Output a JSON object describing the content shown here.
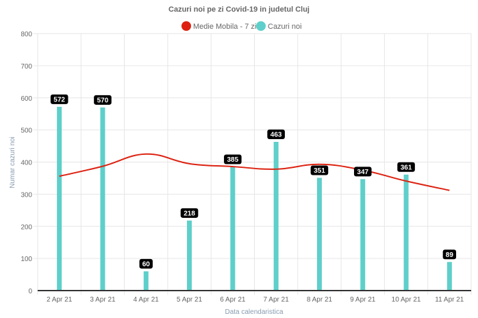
{
  "chart_data": {
    "type": "bar",
    "title": "Cazuri noi pe zi Covid-19 in judetul Cluj",
    "xlabel": "Data calendaristica",
    "ylabel": "Numar cazuri noi",
    "ylim": [
      0,
      800
    ],
    "yticks": [
      "0",
      "100",
      "200",
      "300",
      "400",
      "500",
      "600",
      "700",
      "800"
    ],
    "grid": true,
    "legend_position": "top-center",
    "categories": [
      "2 Apr 21",
      "3 Apr 21",
      "4 Apr 21",
      "5 Apr 21",
      "6 Apr 21",
      "7 Apr 21",
      "8 Apr 21",
      "9 Apr 21",
      "10 Apr 21",
      "11 Apr 21"
    ],
    "series": [
      {
        "name": "Medie Mobila - 7 zile",
        "type": "line",
        "color": "#dd2211",
        "values": [
          356,
          387,
          425,
          395,
          386,
          378,
          393,
          375,
          341,
          312
        ]
      },
      {
        "name": "Cazuri noi",
        "type": "bar",
        "color": "#5ecfca",
        "values": [
          572,
          570,
          60,
          218,
          385,
          463,
          351,
          347,
          361,
          89
        ],
        "data_labels": [
          "572",
          "570",
          "60",
          "218",
          "385",
          "463",
          "351",
          "347",
          "361",
          "89"
        ]
      }
    ]
  }
}
